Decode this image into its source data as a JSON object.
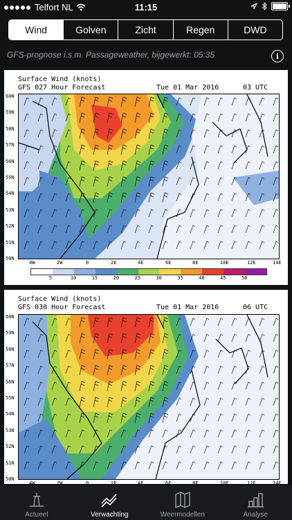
{
  "status_bar": {
    "carrier": "Telfort NL",
    "time": "11:15"
  },
  "tabs": [
    {
      "label": "Wind",
      "active": true
    },
    {
      "label": "Golven",
      "active": false
    },
    {
      "label": "Zicht",
      "active": false
    },
    {
      "label": "Regen",
      "active": false
    },
    {
      "label": "DWD",
      "active": false
    }
  ],
  "info_line": "GFS-prognose i.s.m. Passageweather, bijgewerkt: 05:35",
  "maps": [
    {
      "title": "Surface Wind (knots)",
      "forecast": "GFS 027 Hour Forecast",
      "date": "Tue 01 Mar 2016",
      "time": "03 UTC"
    },
    {
      "title": "Surface Wind (knots)",
      "forecast": "GFS 030 Hour Forecast",
      "date": "Tue 01 Mar 2016",
      "time": "06 UTC"
    }
  ],
  "latitudes": [
    "60N",
    "59N",
    "58N",
    "57N",
    "56N",
    "55N",
    "54N",
    "53N",
    "52N",
    "51N",
    "50N"
  ],
  "longitudes": [
    "4W",
    "2W",
    "0",
    "2E",
    "4E",
    "6E",
    "8E",
    "10E",
    "12E",
    "14E"
  ],
  "scale": {
    "values": [
      "5",
      "10",
      "15",
      "20",
      "25",
      "30",
      "35",
      "40",
      "45",
      "50"
    ],
    "colors": [
      "#ffffff",
      "#c9d6ef",
      "#8fb1e0",
      "#5a8cc9",
      "#4cae6b",
      "#a8d24a",
      "#f2d64a",
      "#f39a2c",
      "#e8412e",
      "#c0186f",
      "#9a1aa8"
    ]
  },
  "bottom_tabs": [
    {
      "label": "Actueel",
      "icon": "buoy-icon",
      "active": false
    },
    {
      "label": "Verwachting",
      "icon": "trend-chart-icon",
      "active": true
    },
    {
      "label": "Weermodellen",
      "icon": "map-icon",
      "active": false
    },
    {
      "label": "Analyse",
      "icon": "bar-chart-icon",
      "active": false
    }
  ]
}
